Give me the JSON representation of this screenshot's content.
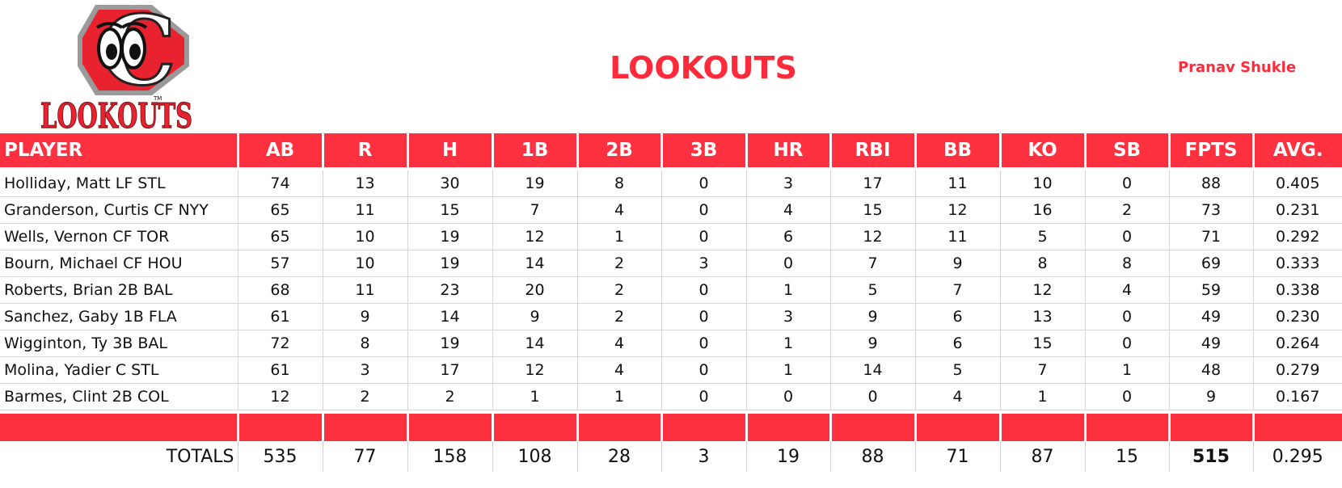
{
  "header": {
    "logo_text": "LOOKOUTS",
    "logo_letter": "C",
    "logo_tm": "TM",
    "team_title": "LOOKOUTS",
    "owner": "Pranav Shukle"
  },
  "colors": {
    "accent": "#ff3040",
    "title": "#ff2b3a",
    "logo_red": "#e8232f",
    "logo_grey": "#8a8a8a"
  },
  "table": {
    "columns": [
      "PLAYER",
      "AB",
      "R",
      "H",
      "1B",
      "2B",
      "3B",
      "HR",
      "RBI",
      "BB",
      "KO",
      "SB",
      "FPTS",
      "AVG."
    ],
    "rows": [
      [
        "Holliday, Matt LF STL",
        "74",
        "13",
        "30",
        "19",
        "8",
        "0",
        "3",
        "17",
        "11",
        "10",
        "0",
        "88",
        "0.405"
      ],
      [
        "Granderson, Curtis CF NYY",
        "65",
        "11",
        "15",
        "7",
        "4",
        "0",
        "4",
        "15",
        "12",
        "16",
        "2",
        "73",
        "0.231"
      ],
      [
        "Wells, Vernon CF TOR",
        "65",
        "10",
        "19",
        "12",
        "1",
        "0",
        "6",
        "12",
        "11",
        "5",
        "0",
        "71",
        "0.292"
      ],
      [
        "Bourn, Michael CF HOU",
        "57",
        "10",
        "19",
        "14",
        "2",
        "3",
        "0",
        "7",
        "9",
        "8",
        "8",
        "69",
        "0.333"
      ],
      [
        "Roberts, Brian 2B BAL",
        "68",
        "11",
        "23",
        "20",
        "2",
        "0",
        "1",
        "5",
        "7",
        "12",
        "4",
        "59",
        "0.338"
      ],
      [
        "Sanchez, Gaby 1B FLA",
        "61",
        "9",
        "14",
        "9",
        "2",
        "0",
        "3",
        "9",
        "6",
        "13",
        "0",
        "49",
        "0.230"
      ],
      [
        "Wigginton, Ty 3B BAL",
        "72",
        "8",
        "19",
        "14",
        "4",
        "0",
        "1",
        "9",
        "6",
        "15",
        "0",
        "49",
        "0.264"
      ],
      [
        "Molina, Yadier C STL",
        "61",
        "3",
        "17",
        "12",
        "4",
        "0",
        "1",
        "14",
        "5",
        "7",
        "1",
        "48",
        "0.279"
      ],
      [
        "Barmes, Clint 2B COL",
        "12",
        "2",
        "2",
        "1",
        "1",
        "0",
        "0",
        "0",
        "4",
        "1",
        "0",
        "9",
        "0.167"
      ]
    ],
    "totals": [
      "TOTALS",
      "535",
      "77",
      "158",
      "108",
      "28",
      "3",
      "19",
      "88",
      "71",
      "87",
      "15",
      "515",
      "0.295"
    ]
  }
}
